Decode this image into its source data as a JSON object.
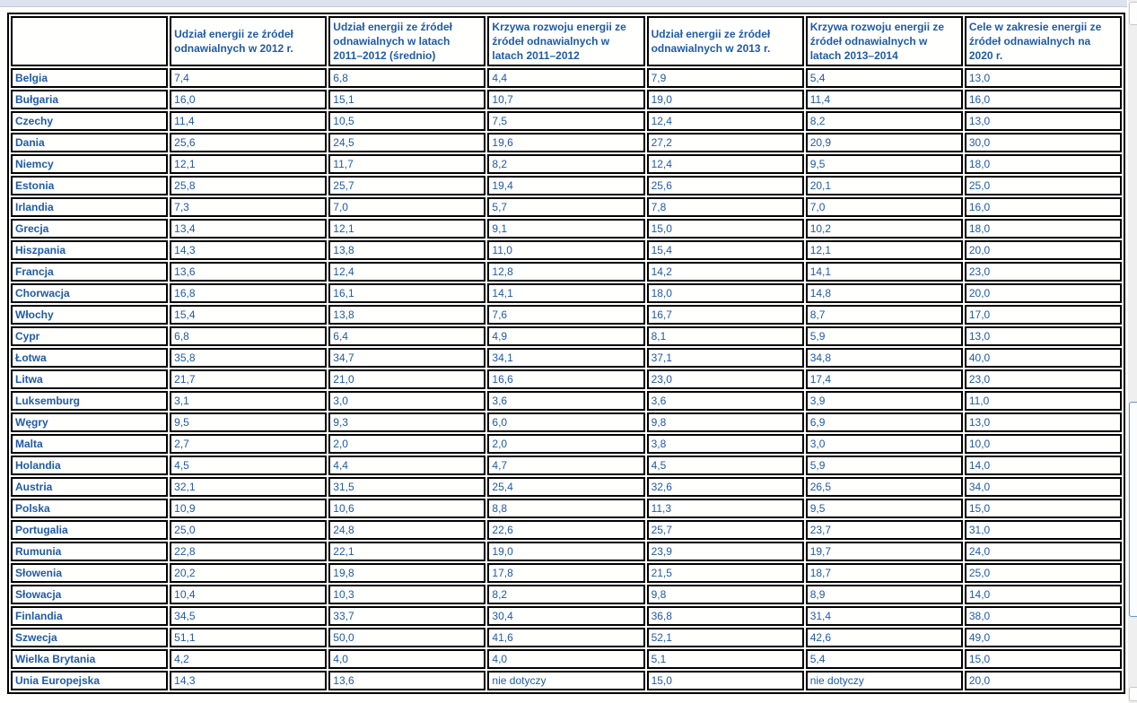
{
  "colors": {
    "text_blue": "#1f5aa9",
    "cell_border": "#000000",
    "top_band": "#dce3ee",
    "page_background": "#fffffe",
    "scrollbar_thumb_border": "#6593cf"
  },
  "table": {
    "columns": [
      "",
      "Udział energii ze źródeł odnawialnych w 2012 r.",
      "Udział energii ze źródeł odnawialnych w latach 2011–2012 (średnio)",
      "Krzywa rozwoju energii ze źródeł odnawialnych w latach 2011–2012",
      "Udział energii ze źródeł odnawialnych w 2013 r.",
      "Krzywa rozwoju energii ze źródeł odnawialnych w latach 2013–2014",
      "Cele w zakresie energii ze źródeł odnawialnych na 2020 r."
    ],
    "rows": [
      {
        "country": "Belgia",
        "values": [
          "7,4",
          "6,8",
          "4,4",
          "7,9",
          "5,4",
          "13,0"
        ]
      },
      {
        "country": "Bułgaria",
        "values": [
          "16,0",
          "15,1",
          "10,7",
          "19,0",
          "11,4",
          "16,0"
        ]
      },
      {
        "country": "Czechy",
        "values": [
          "11,4",
          "10,5",
          "7,5",
          "12,4",
          "8,2",
          "13,0"
        ]
      },
      {
        "country": "Dania",
        "values": [
          "25,6",
          "24,5",
          "19,6",
          "27,2",
          "20,9",
          "30,0"
        ]
      },
      {
        "country": "Niemcy",
        "values": [
          "12,1",
          "11,7",
          "8,2",
          "12,4",
          "9,5",
          "18,0"
        ]
      },
      {
        "country": "Estonia",
        "values": [
          "25,8",
          "25,7",
          "19,4",
          "25,6",
          "20,1",
          "25,0"
        ]
      },
      {
        "country": "Irlandia",
        "values": [
          "7,3",
          "7,0",
          "5,7",
          "7,8",
          "7,0",
          "16,0"
        ]
      },
      {
        "country": "Grecja",
        "values": [
          "13,4",
          "12,1",
          "9,1",
          "15,0",
          "10,2",
          "18,0"
        ]
      },
      {
        "country": "Hiszpania",
        "values": [
          "14,3",
          "13,8",
          "11,0",
          "15,4",
          "12,1",
          "20,0"
        ]
      },
      {
        "country": "Francja",
        "values": [
          "13,6",
          "12,4",
          "12,8",
          "14,2",
          "14,1",
          "23,0"
        ]
      },
      {
        "country": "Chorwacja",
        "values": [
          "16,8",
          "16,1",
          "14,1",
          "18,0",
          "14,8",
          "20,0"
        ]
      },
      {
        "country": "Włochy",
        "values": [
          "15,4",
          "13,8",
          "7,6",
          "16,7",
          "8,7",
          "17,0"
        ]
      },
      {
        "country": "Cypr",
        "values": [
          "6,8",
          "6,4",
          "4,9",
          "8,1",
          "5,9",
          "13,0"
        ]
      },
      {
        "country": "Łotwa",
        "values": [
          "35,8",
          "34,7",
          "34,1",
          "37,1",
          "34,8",
          "40,0"
        ]
      },
      {
        "country": "Litwa",
        "values": [
          "21,7",
          "21,0",
          "16,6",
          "23,0",
          "17,4",
          "23,0"
        ]
      },
      {
        "country": "Luksemburg",
        "values": [
          "3,1",
          "3,0",
          "3,6",
          "3,6",
          "3,9",
          "11,0"
        ]
      },
      {
        "country": "Węgry",
        "values": [
          "9,5",
          "9,3",
          "6,0",
          "9,8",
          "6,9",
          "13,0"
        ]
      },
      {
        "country": "Malta",
        "values": [
          "2,7",
          "2,0",
          "2,0",
          "3,8",
          "3,0",
          "10,0"
        ]
      },
      {
        "country": "Holandia",
        "values": [
          "4,5",
          "4,4",
          "4,7",
          "4,5",
          "5,9",
          "14,0"
        ]
      },
      {
        "country": "Austria",
        "values": [
          "32,1",
          "31,5",
          "25,4",
          "32,6",
          "26,5",
          "34,0"
        ]
      },
      {
        "country": "Polska",
        "values": [
          "10,9",
          "10,6",
          "8,8",
          "11,3",
          "9,5",
          "15,0"
        ]
      },
      {
        "country": "Portugalia",
        "values": [
          "25,0",
          "24,8",
          "22,6",
          "25,7",
          "23,7",
          "31,0"
        ]
      },
      {
        "country": "Rumunia",
        "values": [
          "22,8",
          "22,1",
          "19,0",
          "23,9",
          "19,7",
          "24,0"
        ]
      },
      {
        "country": "Słowenia",
        "values": [
          "20,2",
          "19,8",
          "17,8",
          "21,5",
          "18,7",
          "25,0"
        ]
      },
      {
        "country": "Słowacja",
        "values": [
          "10,4",
          "10,3",
          "8,2",
          "9,8",
          "8,9",
          "14,0"
        ]
      },
      {
        "country": "Finlandia",
        "values": [
          "34,5",
          "33,7",
          "30,4",
          "36,8",
          "31,4",
          "38,0"
        ]
      },
      {
        "country": "Szwecja",
        "values": [
          "51,1",
          "50,0",
          "41,6",
          "52,1",
          "42,6",
          "49,0"
        ]
      },
      {
        "country": "Wielka Brytania",
        "values": [
          "4,2",
          "4,0",
          "4,0",
          "5,1",
          "5,4",
          "15,0"
        ]
      },
      {
        "country": "Unia Europejska",
        "values": [
          "14,3",
          "13,6",
          "nie dotyczy",
          "15,0",
          "nie dotyczy",
          "20,0"
        ]
      }
    ]
  }
}
